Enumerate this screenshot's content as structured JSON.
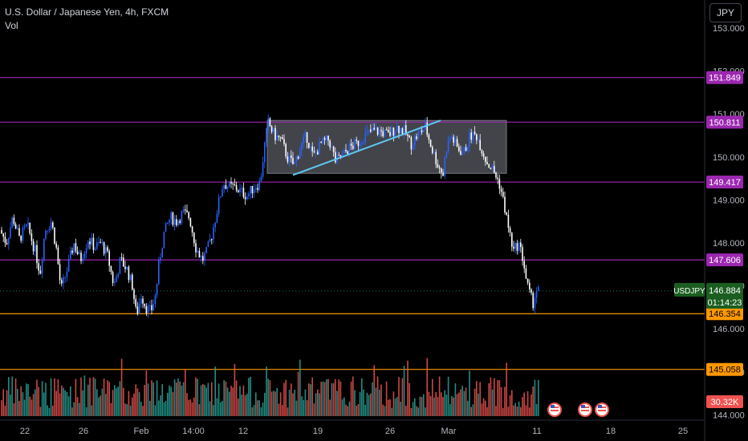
{
  "header": {
    "symbol_title": "U.S. Dollar / Japanese Yen, 4h, FXCM",
    "volume_label": "Vol",
    "currency": "JPY"
  },
  "colors": {
    "background": "#000000",
    "up": "#2962ff",
    "down": "#ffffff",
    "horizontal_line": "#9c27b0",
    "orange_line": "#ff9800",
    "trendline": "#5ec8f2",
    "rectangle": "#787b86",
    "vol_up": "#26a69a",
    "vol_down": "#ef5350",
    "current_price": "#1b5e20"
  },
  "chart_data": {
    "type": "candlestick",
    "title": "U.S. Dollar / Japanese Yen, 4h, FXCM",
    "price_axis": {
      "ticks": [
        "153.000",
        "152.000",
        "151.000",
        "150.000",
        "149.000",
        "148.000",
        "147.000",
        "146.000",
        "145.000",
        "144.000"
      ],
      "range": [
        143.85,
        153.25
      ]
    },
    "time_axis": {
      "ticks": [
        "22",
        "26",
        "Feb",
        "14:00",
        "12",
        "19",
        "26",
        "Mar",
        "11",
        "18",
        "25"
      ]
    },
    "horizontal_levels": [
      {
        "price": 151.849,
        "label": "151.849",
        "color": "#9c27b0"
      },
      {
        "price": 150.811,
        "label": "150.811",
        "color": "#9c27b0"
      },
      {
        "price": 149.417,
        "label": "149.417",
        "color": "#9c27b0"
      },
      {
        "price": 147.606,
        "label": "147.606",
        "color": "#9c27b0"
      },
      {
        "price": 146.354,
        "label": "146.354",
        "color": "#ff9800"
      },
      {
        "price": 145.058,
        "label": "145.058",
        "color": "#ff9800"
      }
    ],
    "current_price": {
      "symbol": "USDJPY",
      "price": "146.884",
      "countdown": "01:14:23"
    },
    "volume": {
      "last_label": "30.32K"
    },
    "rectangle_zone": {
      "price_top": 150.85,
      "price_bottom": 149.62
    },
    "trendline": {
      "start_price": 149.58,
      "end_price": 150.85
    },
    "price_path": [
      [
        0,
        148.3
      ],
      [
        8,
        148.0
      ],
      [
        16,
        148.6
      ],
      [
        24,
        148.1
      ],
      [
        34,
        148.4
      ],
      [
        44,
        147.8
      ],
      [
        50,
        147.3
      ],
      [
        56,
        148.3
      ],
      [
        64,
        148.5
      ],
      [
        70,
        147.9
      ],
      [
        76,
        146.9
      ],
      [
        84,
        147.4
      ],
      [
        92,
        148.0
      ],
      [
        100,
        147.6
      ],
      [
        110,
        148.1
      ],
      [
        118,
        147.9
      ],
      [
        126,
        148.0
      ],
      [
        134,
        147.7
      ],
      [
        142,
        147.0
      ],
      [
        150,
        147.6
      ],
      [
        158,
        147.4
      ],
      [
        165,
        147.0
      ],
      [
        170,
        146.3
      ],
      [
        176,
        146.8
      ],
      [
        182,
        146.5
      ],
      [
        188,
        146.4
      ],
      [
        194,
        146.8
      ],
      [
        198,
        147.5
      ],
      [
        204,
        148.2
      ],
      [
        212,
        148.6
      ],
      [
        220,
        148.5
      ],
      [
        228,
        148.7
      ],
      [
        236,
        148.6
      ],
      [
        244,
        147.9
      ],
      [
        252,
        147.6
      ],
      [
        258,
        147.8
      ],
      [
        264,
        148.2
      ],
      [
        272,
        148.9
      ],
      [
        278,
        149.4
      ],
      [
        286,
        149.3
      ],
      [
        292,
        149.3
      ],
      [
        300,
        149.2
      ],
      [
        308,
        149.1
      ],
      [
        316,
        149.3
      ],
      [
        324,
        149.4
      ],
      [
        330,
        150.3
      ],
      [
        334,
        150.8
      ],
      [
        342,
        150.5
      ],
      [
        350,
        150.4
      ],
      [
        358,
        150.0
      ],
      [
        366,
        149.8
      ],
      [
        374,
        150.2
      ],
      [
        382,
        150.5
      ],
      [
        390,
        150.0
      ],
      [
        400,
        150.3
      ],
      [
        410,
        150.4
      ],
      [
        418,
        149.9
      ],
      [
        426,
        150.0
      ],
      [
        434,
        150.2
      ],
      [
        444,
        150.3
      ],
      [
        454,
        150.5
      ],
      [
        464,
        150.6
      ],
      [
        474,
        150.6
      ],
      [
        484,
        150.5
      ],
      [
        494,
        150.7
      ],
      [
        504,
        150.6
      ],
      [
        512,
        150.3
      ],
      [
        520,
        150.5
      ],
      [
        530,
        150.7
      ],
      [
        538,
        150.2
      ],
      [
        546,
        149.8
      ],
      [
        552,
        149.6
      ],
      [
        556,
        150.2
      ],
      [
        562,
        150.5
      ],
      [
        570,
        150.2
      ],
      [
        578,
        150.1
      ],
      [
        586,
        150.5
      ],
      [
        594,
        150.5
      ],
      [
        600,
        150.2
      ],
      [
        606,
        149.9
      ],
      [
        614,
        149.7
      ],
      [
        622,
        149.4
      ],
      [
        628,
        148.9
      ],
      [
        634,
        148.3
      ],
      [
        640,
        147.8
      ],
      [
        646,
        148.0
      ],
      [
        652,
        147.6
      ],
      [
        656,
        147.1
      ],
      [
        660,
        146.8
      ],
      [
        664,
        146.6
      ],
      [
        668,
        146.9
      ],
      [
        672,
        146.88
      ]
    ]
  }
}
